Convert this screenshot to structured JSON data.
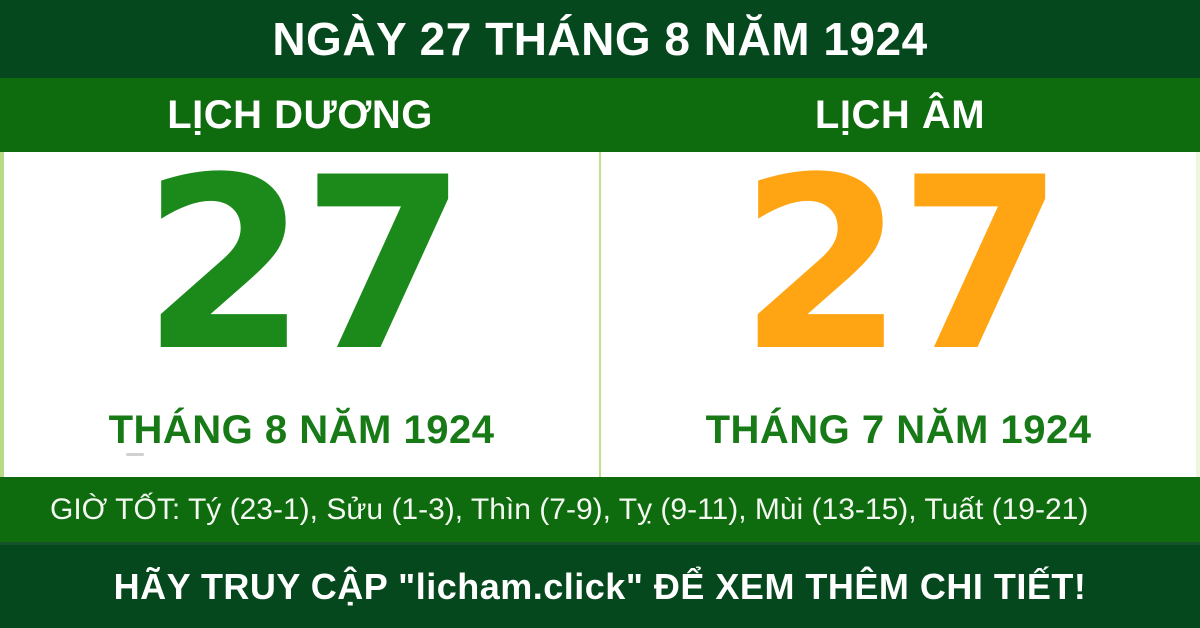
{
  "header": {
    "title": "NGÀY 27 THÁNG 8 NĂM 1924"
  },
  "calendar_bar": {
    "solar_label": "LỊCH DƯƠNG",
    "lunar_label": "LỊCH ÂM"
  },
  "solar": {
    "day": "27",
    "month_year": "THÁNG 8 NĂM 1924"
  },
  "lunar": {
    "day": "27",
    "month_year": "THÁNG 7 NĂM 1924"
  },
  "good_hours": {
    "text": "GIỜ TỐT: Tý (23-1), Sửu (1-3), Thìn (7-9), Tỵ (9-11), Mùi (13-15), Tuất (19-21)"
  },
  "footer": {
    "text": "HÃY TRUY CẬP \"licham.click\" ĐỂ XEM THÊM CHI TIẾT!"
  },
  "colors": {
    "dark_green": "#06481d",
    "bright_green": "#0e6b0e",
    "solar_day_green": "#1b8a1b",
    "lunar_day_orange": "#ffa413",
    "month_text_green": "#177a17",
    "divider_light_green": "#c3e08e",
    "text_white": "#ffffff"
  }
}
